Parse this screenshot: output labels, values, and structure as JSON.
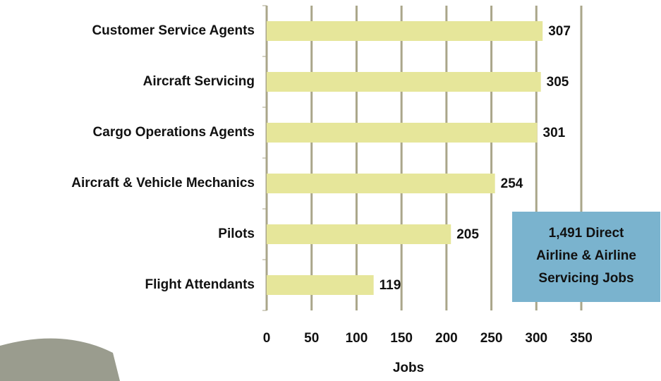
{
  "chart_data": {
    "type": "barh",
    "categories": [
      "Customer Service Agents",
      "Aircraft Servicing",
      "Cargo Operations Agents",
      "Aircraft & Vehicle Mechanics",
      "Pilots",
      "Flight Attendants"
    ],
    "values": [
      307,
      305,
      301,
      254,
      205,
      119
    ],
    "color": "#e6e69a",
    "xlim": [
      0,
      350
    ],
    "xticks": [
      0,
      50,
      100,
      150,
      200,
      250,
      300,
      350
    ],
    "xlabel": "Jobs",
    "grid": true,
    "annotation": [
      "1,491 Direct",
      "Airline & Airline",
      "Servicing Jobs"
    ]
  }
}
